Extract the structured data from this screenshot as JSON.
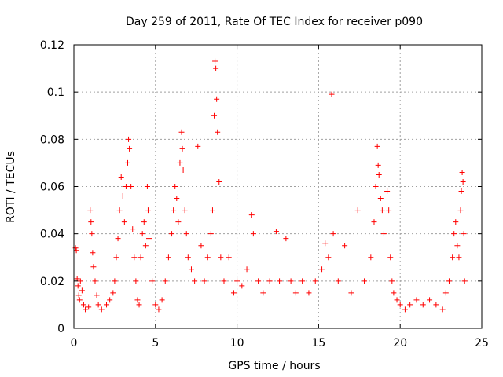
{
  "chart_data": {
    "type": "scatter",
    "title": "Day 259 of 2011, Rate Of TEC Index for receiver p090",
    "xlabel": "GPS time / hours",
    "ylabel": "ROTI / TECUs",
    "xlim": [
      0,
      25
    ],
    "ylim": [
      0,
      0.12
    ],
    "xticks": [
      "0",
      "5",
      "10",
      "15",
      "20",
      "25"
    ],
    "yticks": [
      "0",
      "0.02",
      "0.04",
      "0.06",
      "0.08",
      "0.1",
      "0.12"
    ],
    "grid": true,
    "marker": "plus",
    "color": "#ff0000",
    "series": [
      {
        "points": [
          [
            0.1,
            0.034
          ],
          [
            0.15,
            0.033
          ],
          [
            0.2,
            0.021
          ],
          [
            0.25,
            0.018
          ],
          [
            0.3,
            0.014
          ],
          [
            0.35,
            0.012
          ],
          [
            0.4,
            0.02
          ],
          [
            0.5,
            0.016
          ],
          [
            0.6,
            0.01
          ],
          [
            0.7,
            0.008
          ],
          [
            0.9,
            0.009
          ],
          [
            1.0,
            0.05
          ],
          [
            1.05,
            0.045
          ],
          [
            1.1,
            0.04
          ],
          [
            1.15,
            0.032
          ],
          [
            1.2,
            0.026
          ],
          [
            1.3,
            0.02
          ],
          [
            1.4,
            0.014
          ],
          [
            1.5,
            0.01
          ],
          [
            1.7,
            0.008
          ],
          [
            2.0,
            0.01
          ],
          [
            2.2,
            0.012
          ],
          [
            2.4,
            0.015
          ],
          [
            2.5,
            0.02
          ],
          [
            2.6,
            0.03
          ],
          [
            2.7,
            0.038
          ],
          [
            2.8,
            0.05
          ],
          [
            2.9,
            0.064
          ],
          [
            3.0,
            0.056
          ],
          [
            3.1,
            0.045
          ],
          [
            3.2,
            0.06
          ],
          [
            3.3,
            0.07
          ],
          [
            3.35,
            0.08
          ],
          [
            3.4,
            0.076
          ],
          [
            3.5,
            0.06
          ],
          [
            3.6,
            0.042
          ],
          [
            3.7,
            0.03
          ],
          [
            3.8,
            0.02
          ],
          [
            3.9,
            0.012
          ],
          [
            4.0,
            0.01
          ],
          [
            4.1,
            0.03
          ],
          [
            4.2,
            0.04
          ],
          [
            4.3,
            0.045
          ],
          [
            4.4,
            0.035
          ],
          [
            4.5,
            0.06
          ],
          [
            4.55,
            0.05
          ],
          [
            4.6,
            0.038
          ],
          [
            4.8,
            0.02
          ],
          [
            5.0,
            0.01
          ],
          [
            5.2,
            0.008
          ],
          [
            5.4,
            0.012
          ],
          [
            5.6,
            0.02
          ],
          [
            5.8,
            0.03
          ],
          [
            6.0,
            0.04
          ],
          [
            6.1,
            0.05
          ],
          [
            6.2,
            0.06
          ],
          [
            6.3,
            0.055
          ],
          [
            6.4,
            0.045
          ],
          [
            6.5,
            0.07
          ],
          [
            6.6,
            0.083
          ],
          [
            6.65,
            0.076
          ],
          [
            6.7,
            0.067
          ],
          [
            6.8,
            0.05
          ],
          [
            6.9,
            0.04
          ],
          [
            7.0,
            0.03
          ],
          [
            7.2,
            0.025
          ],
          [
            7.4,
            0.02
          ],
          [
            7.6,
            0.077
          ],
          [
            7.8,
            0.035
          ],
          [
            8.0,
            0.02
          ],
          [
            8.2,
            0.03
          ],
          [
            8.4,
            0.04
          ],
          [
            8.5,
            0.05
          ],
          [
            8.6,
            0.09
          ],
          [
            8.65,
            0.113
          ],
          [
            8.7,
            0.11
          ],
          [
            8.75,
            0.097
          ],
          [
            8.8,
            0.083
          ],
          [
            8.9,
            0.062
          ],
          [
            9.0,
            0.03
          ],
          [
            9.2,
            0.02
          ],
          [
            9.5,
            0.03
          ],
          [
            9.8,
            0.015
          ],
          [
            10.0,
            0.02
          ],
          [
            10.3,
            0.018
          ],
          [
            10.6,
            0.025
          ],
          [
            10.9,
            0.048
          ],
          [
            11.0,
            0.04
          ],
          [
            11.3,
            0.02
          ],
          [
            11.6,
            0.015
          ],
          [
            12.0,
            0.02
          ],
          [
            12.4,
            0.041
          ],
          [
            12.6,
            0.02
          ],
          [
            13.0,
            0.038
          ],
          [
            13.3,
            0.02
          ],
          [
            13.6,
            0.015
          ],
          [
            14.0,
            0.02
          ],
          [
            14.4,
            0.015
          ],
          [
            14.8,
            0.02
          ],
          [
            15.2,
            0.025
          ],
          [
            15.4,
            0.036
          ],
          [
            15.6,
            0.03
          ],
          [
            15.8,
            0.099
          ],
          [
            15.9,
            0.04
          ],
          [
            16.2,
            0.02
          ],
          [
            16.6,
            0.035
          ],
          [
            17.0,
            0.015
          ],
          [
            17.4,
            0.05
          ],
          [
            17.8,
            0.02
          ],
          [
            18.2,
            0.03
          ],
          [
            18.4,
            0.045
          ],
          [
            18.5,
            0.06
          ],
          [
            18.6,
            0.077
          ],
          [
            18.65,
            0.069
          ],
          [
            18.7,
            0.065
          ],
          [
            18.8,
            0.055
          ],
          [
            18.9,
            0.05
          ],
          [
            19.0,
            0.04
          ],
          [
            19.2,
            0.058
          ],
          [
            19.3,
            0.05
          ],
          [
            19.4,
            0.03
          ],
          [
            19.5,
            0.02
          ],
          [
            19.6,
            0.015
          ],
          [
            19.8,
            0.012
          ],
          [
            20.0,
            0.01
          ],
          [
            20.3,
            0.008
          ],
          [
            20.6,
            0.01
          ],
          [
            21.0,
            0.012
          ],
          [
            21.4,
            0.01
          ],
          [
            21.8,
            0.012
          ],
          [
            22.2,
            0.01
          ],
          [
            22.6,
            0.008
          ],
          [
            22.8,
            0.015
          ],
          [
            23.0,
            0.02
          ],
          [
            23.2,
            0.03
          ],
          [
            23.3,
            0.04
          ],
          [
            23.4,
            0.045
          ],
          [
            23.5,
            0.035
          ],
          [
            23.6,
            0.03
          ],
          [
            23.7,
            0.05
          ],
          [
            23.75,
            0.058
          ],
          [
            23.8,
            0.066
          ],
          [
            23.85,
            0.062
          ],
          [
            23.9,
            0.04
          ],
          [
            23.95,
            0.02
          ]
        ]
      }
    ]
  }
}
